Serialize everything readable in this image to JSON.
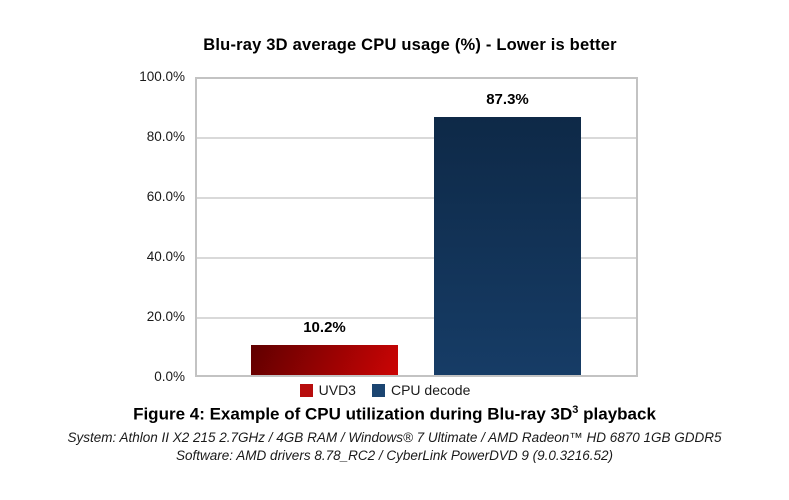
{
  "chart_data": {
    "type": "bar",
    "title": "Blu-ray 3D average CPU usage (%) - Lower is better",
    "categories": [
      "UVD3",
      "CPU decode"
    ],
    "values": [
      10.2,
      87.3
    ],
    "value_labels": [
      "10.2%",
      "87.3%"
    ],
    "ylim": [
      0,
      100
    ],
    "yticks": [
      "100.0%",
      "80.0%",
      "60.0%",
      "40.0%",
      "20.0%",
      "0.0%"
    ],
    "grid": true,
    "legend_position": "bottom",
    "legend": [
      {
        "label": "UVD3",
        "color": "#b70d0d"
      },
      {
        "label": "CPU decode",
        "color": "#1b4571"
      }
    ],
    "bar_styles": [
      {
        "gradient_angle": "115deg",
        "color_from": "#600000",
        "color_to": "#cb0404"
      },
      {
        "gradient_angle": "180deg",
        "color_from": "#0e2947",
        "color_to": "#163c66"
      }
    ]
  },
  "caption": {
    "figure_prefix": "Figure 4: Example of CPU utilization during Blu-ray 3D",
    "figure_superscript": "3",
    "figure_suffix": " playback",
    "system_line": "System: Athlon II X2 215 2.7GHz / 4GB RAM / Windows® 7 Ultimate / AMD Radeon™ HD 6870 1GB GDDR5",
    "software_line": "Software: AMD drivers 8.78_RC2 / CyberLink PowerDVD 9 (9.0.3216.52)"
  },
  "colors": {
    "gridline": "#d9d9d9",
    "plot_border": "#c3c3c3",
    "background": "#ffffff",
    "text": "#000000"
  }
}
